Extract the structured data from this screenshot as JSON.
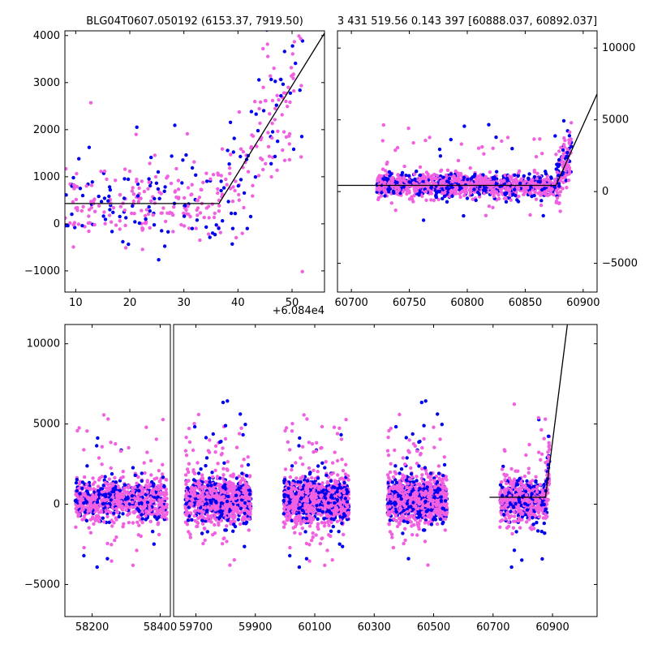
{
  "chart_data": [
    {
      "id": "top-left",
      "type": "scatter",
      "title": "BLG04T0607.050192 (6153.37, 7919.50)",
      "offset_label": "+6.084e4",
      "xlim": [
        8,
        56
      ],
      "ylim": [
        -1450,
        4100
      ],
      "x_ticks": [
        10,
        20,
        30,
        40,
        50
      ],
      "y_ticks": [
        -1000,
        0,
        1000,
        2000,
        3000,
        4000
      ],
      "model": {
        "x": [
          8,
          36.5,
          56
        ],
        "y": [
          430,
          430,
          4050
        ]
      },
      "colors": {
        "series_a": "#0000ee",
        "series_b": "#f060e0",
        "model": "#000000"
      }
    },
    {
      "id": "top-right",
      "type": "scatter",
      "title": "3 431 519.56 0.143 397 [60888.037, 60892.037]",
      "xlim": [
        60688,
        60912
      ],
      "ylim": [
        -7000,
        11200
      ],
      "x_ticks": [
        60700,
        60750,
        60800,
        60850,
        60900
      ],
      "y_ticks": [
        -5000,
        0,
        5000,
        10000
      ],
      "model": {
        "x": [
          60688,
          60876.5,
          60912
        ],
        "y": [
          430,
          430,
          6800
        ]
      },
      "colors": {
        "series_a": "#0000ee",
        "series_b": "#f060e0",
        "model": "#000000"
      }
    },
    {
      "id": "bottom",
      "type": "scatter",
      "xlim": [
        58120,
        61050
      ],
      "ylim": [
        -7000,
        11200
      ],
      "x_ticks": [
        58200,
        58400,
        59700,
        59900,
        60100,
        60300,
        60500,
        60700,
        60900
      ],
      "x_ticks_shown": [
        "58200",
        "58400",
        "59700",
        "59900",
        "60100",
        "60300",
        "60500",
        "60700",
        "60900"
      ],
      "y_ticks": [
        -5000,
        0,
        5000,
        10000
      ],
      "model": {
        "x": [
          60688,
          60876.5,
          60950
        ],
        "y": [
          430,
          430,
          11200
        ]
      },
      "colors": {
        "series_a": "#0000ee",
        "series_b": "#f060e0",
        "model": "#000000"
      }
    }
  ]
}
